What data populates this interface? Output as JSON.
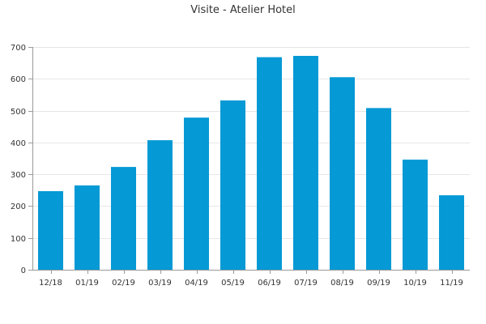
{
  "chart_data": {
    "type": "bar",
    "title": "Visite - Atelier Hotel",
    "xlabel": "",
    "ylabel": "",
    "categories": [
      "12/18",
      "01/19",
      "02/19",
      "03/19",
      "04/19",
      "05/19",
      "06/19",
      "07/19",
      "08/19",
      "09/19",
      "10/19",
      "11/19"
    ],
    "values": [
      247,
      265,
      323,
      407,
      478,
      532,
      668,
      672,
      605,
      508,
      346,
      234
    ],
    "ylim": [
      0,
      700
    ],
    "yticks": [
      0,
      100,
      200,
      300,
      400,
      500,
      600,
      700
    ],
    "grid": true,
    "legend": "none",
    "colors": {
      "bar": "#0599d5",
      "grid": "#e6e6e6",
      "axis": "#999999",
      "text": "#333333"
    }
  }
}
